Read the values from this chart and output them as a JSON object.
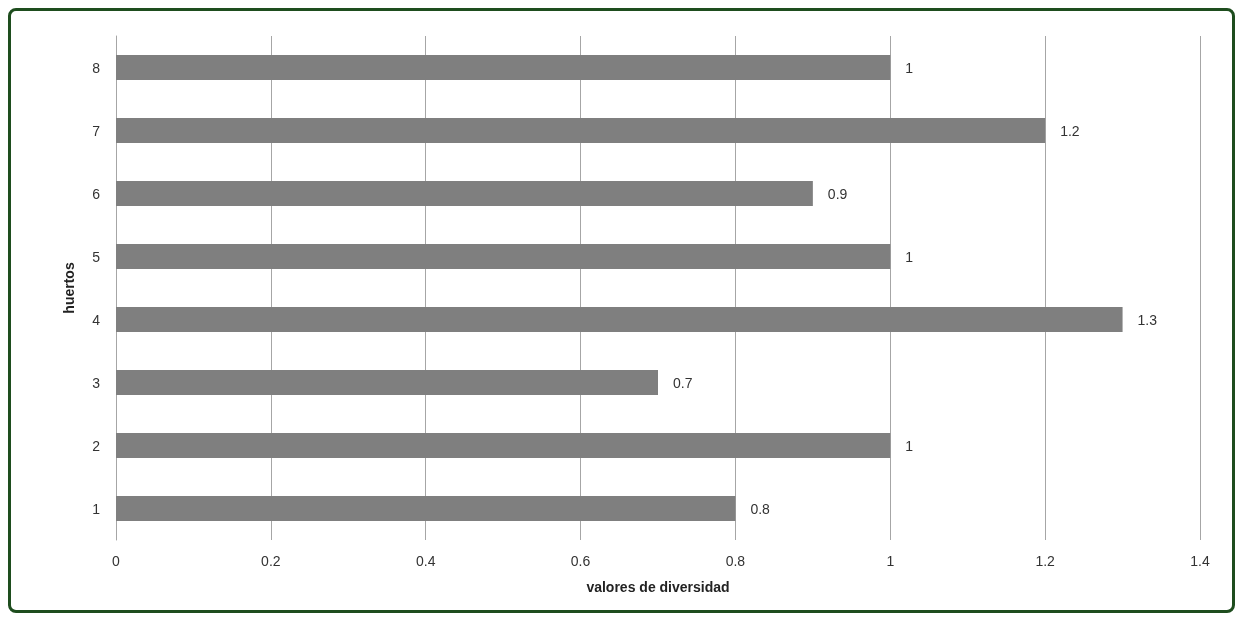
{
  "chart_data": {
    "type": "bar",
    "orientation": "horizontal",
    "xlabel": "valores de diversidad",
    "ylabel": "huertos",
    "categories": [
      "8",
      "7",
      "6",
      "5",
      "4",
      "3",
      "2",
      "1"
    ],
    "values": [
      1,
      1.2,
      0.9,
      1,
      1.3,
      0.7,
      1,
      0.8
    ],
    "color": "#7f7f7f",
    "xlim": [
      0,
      1.4
    ],
    "xticks": [
      0,
      0.2,
      0.4,
      0.6,
      0.8,
      1,
      1.2,
      1.4
    ],
    "grid": "x",
    "data_labels": true
  }
}
